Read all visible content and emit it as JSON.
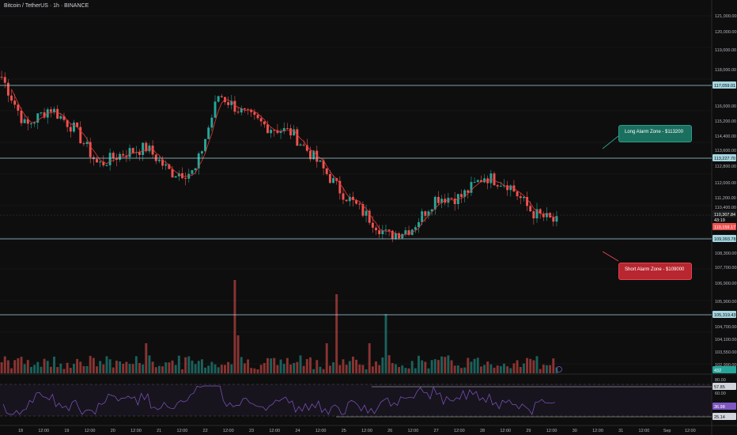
{
  "header": {
    "title": "Bitcoin / TetherUS · 1h · BINANCE"
  },
  "colors": {
    "bg": "#0e0e0e",
    "up": "#26a69a",
    "down": "#ef5350",
    "level": "#a5d6e0",
    "rsi": "#7e57c2",
    "grid": "#1c1c1c"
  },
  "zones": {
    "long_label": "Long Alarm Zone - $113200",
    "short_label": "Short Alarm Zone - $109000"
  },
  "price_axis": {
    "ticks": [
      "121,000.00",
      "120,000.00",
      "119,000.00",
      "118,000.00",
      "117,200.00",
      "116,000.00",
      "115,200.00",
      "114,400.00",
      "113,600.00",
      "112,800.00",
      "112,000.00",
      "111,200.00",
      "110,400.00",
      "108,300.00",
      "107,700.00",
      "106,900.00",
      "105,900.00",
      "104,700.00",
      "104,100.00",
      "103,550.00",
      "102,990.00"
    ],
    "badges": {
      "level_117": "117,059.01",
      "level_113": "113,227.70",
      "level_109": "109,093.78",
      "level_105": "105,319.43",
      "last_price": "110,307.84",
      "countdown": "43:19",
      "prev_price": "110,159.17",
      "volume": "432"
    }
  },
  "rsi_axis": {
    "ticks": [
      "80.00",
      "60.00"
    ],
    "badges": {
      "upper": "57.85",
      "value": "36.98",
      "lower": "25.14"
    }
  },
  "time_axis": {
    "labels": [
      "18",
      "12:00",
      "19",
      "12:00",
      "20",
      "12:00",
      "21",
      "12:00",
      "22",
      "12:00",
      "23",
      "12:00",
      "24",
      "12:00",
      "25",
      "12:00",
      "26",
      "12:00",
      "27",
      "12:00",
      "28",
      "12:00",
      "29",
      "12:00",
      "30",
      "12:00",
      "31",
      "12:00",
      "Sep",
      "12:00"
    ]
  },
  "chart_data": {
    "type": "candlestick",
    "title": "Bitcoin / TetherUS · 1h · BINANCE",
    "ylim": [
      102500,
      121500
    ],
    "horizontal_levels": [
      117059.01,
      113227.7,
      109093.78,
      105319.43
    ],
    "close_series_by_halfday": [
      {
        "x": "18 00:00",
        "y": 117900
      },
      {
        "x": "18 12:00",
        "y": 115300
      },
      {
        "x": "19 00:00",
        "y": 116300
      },
      {
        "x": "19 12:00",
        "y": 115200
      },
      {
        "x": "20 00:00",
        "y": 113300
      },
      {
        "x": "20 12:00",
        "y": 113900
      },
      {
        "x": "21 00:00",
        "y": 114200
      },
      {
        "x": "21 12:00",
        "y": 112900
      },
      {
        "x": "22 00:00",
        "y": 112900
      },
      {
        "x": "22 12:00",
        "y": 117000
      },
      {
        "x": "23 00:00",
        "y": 116000
      },
      {
        "x": "23 12:00",
        "y": 115300
      },
      {
        "x": "24 00:00",
        "y": 115000
      },
      {
        "x": "24 12:00",
        "y": 113600
      },
      {
        "x": "25 00:00",
        "y": 112000
      },
      {
        "x": "25 12:00",
        "y": 110800
      },
      {
        "x": "26 00:00",
        "y": 109600
      },
      {
        "x": "26 12:00",
        "y": 110000
      },
      {
        "x": "27 00:00",
        "y": 111600
      },
      {
        "x": "27 12:00",
        "y": 111600
      },
      {
        "x": "28 00:00",
        "y": 112700
      },
      {
        "x": "28 12:00",
        "y": 112300
      },
      {
        "x": "29 00:00",
        "y": 110800
      },
      {
        "x": "29 06:00",
        "y": 110300
      }
    ],
    "rsi_levels": [
      80,
      60,
      57.85,
      36.98,
      25.14
    ]
  }
}
